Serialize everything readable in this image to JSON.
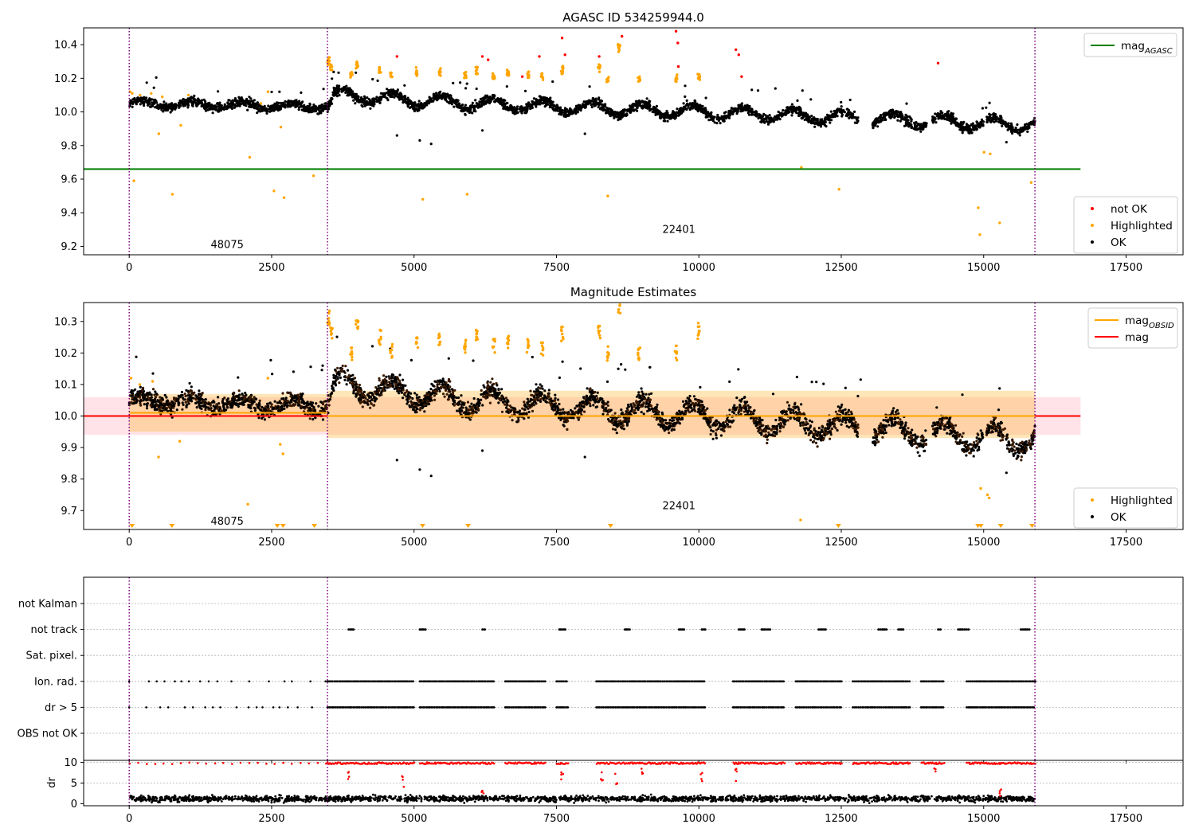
{
  "chart_data": [
    {
      "type": "scatter",
      "title": "AGASC ID 534259944.0",
      "xlim": [
        -800,
        18500
      ],
      "ylim": [
        9.15,
        10.5
      ],
      "x_ticks": [
        0,
        2500,
        5000,
        7500,
        10000,
        12500,
        15000,
        17500
      ],
      "y_ticks": [
        9.2,
        9.4,
        9.6,
        9.8,
        10.0,
        10.2,
        10.4
      ],
      "vlines": [
        0,
        3480,
        15900
      ],
      "obsid_labels": [
        {
          "x": 1720,
          "y": 9.21,
          "text": "48075"
        },
        {
          "x": 9650,
          "y": 9.3,
          "text": "22401"
        }
      ],
      "lines": [
        {
          "name": "mag",
          "subscript": "AGASC",
          "color": "#008000",
          "y": 9.66,
          "x": [
            -800,
            16700
          ]
        }
      ],
      "legend_top": [
        {
          "label": "mag",
          "subscript": "AGASC",
          "color": "#008000",
          "kind": "line"
        }
      ],
      "legend_bottom": [
        {
          "label": "not OK",
          "color": "#ff0000",
          "kind": "dot"
        },
        {
          "label": "Highlighted",
          "color": "#ffa500",
          "kind": "dot"
        },
        {
          "label": "OK",
          "color": "#000000",
          "kind": "dot"
        }
      ],
      "ok_trend": [
        [
          0,
          10.05
        ],
        [
          3480,
          10.03
        ],
        [
          3600,
          10.1
        ],
        [
          6000,
          10.05
        ],
        [
          10000,
          10.0
        ],
        [
          13000,
          9.96
        ],
        [
          15900,
          9.92
        ]
      ],
      "highlighted": [
        [
          30,
          10.12
        ],
        [
          60,
          10.11
        ],
        [
          90,
          9.59
        ],
        [
          200,
          10.1
        ],
        [
          400,
          10.11
        ],
        [
          500,
          9.87
        ],
        [
          600,
          10.09
        ],
        [
          760,
          9.51
        ],
        [
          900,
          9.92
        ],
        [
          1050,
          10.1
        ],
        [
          2100,
          9.73
        ],
        [
          2300,
          10.05
        ],
        [
          2450,
          10.12
        ],
        [
          2550,
          9.53
        ],
        [
          2650,
          9.91
        ],
        [
          2700,
          9.49
        ],
        [
          3250,
          9.62
        ],
        [
          3500,
          10.3
        ],
        [
          3550,
          10.27
        ],
        [
          3900,
          10.22
        ],
        [
          4000,
          10.28
        ],
        [
          4400,
          10.24
        ],
        [
          4600,
          10.21
        ],
        [
          5050,
          10.24
        ],
        [
          5150,
          9.48
        ],
        [
          5450,
          10.24
        ],
        [
          5900,
          10.22
        ],
        [
          5930,
          9.51
        ],
        [
          6100,
          10.25
        ],
        [
          6400,
          10.22
        ],
        [
          6650,
          10.23
        ],
        [
          7000,
          10.22
        ],
        [
          7250,
          10.21
        ],
        [
          7600,
          10.25
        ],
        [
          8250,
          10.26
        ],
        [
          8400,
          10.2
        ],
        [
          8420,
          9.5
        ],
        [
          8600,
          10.38
        ],
        [
          8950,
          10.2
        ],
        [
          9600,
          10.2
        ],
        [
          10000,
          10.2
        ],
        [
          11800,
          9.67
        ],
        [
          12450,
          9.54
        ],
        [
          14900,
          9.43
        ],
        [
          14950,
          9.27
        ],
        [
          15000,
          9.76
        ],
        [
          15100,
          9.75
        ],
        [
          15300,
          9.34
        ],
        [
          15850,
          9.58
        ]
      ],
      "not_ok": [
        [
          4700,
          10.33
        ],
        [
          6200,
          10.33
        ],
        [
          6300,
          10.31
        ],
        [
          6900,
          10.21
        ],
        [
          7200,
          10.33
        ],
        [
          7600,
          10.44
        ],
        [
          7650,
          10.34
        ],
        [
          8250,
          10.33
        ],
        [
          8650,
          10.45
        ],
        [
          9600,
          10.48
        ],
        [
          9630,
          10.41
        ],
        [
          9640,
          10.27
        ],
        [
          10650,
          10.37
        ],
        [
          10700,
          10.34
        ],
        [
          10750,
          10.21
        ],
        [
          14200,
          10.29
        ]
      ]
    },
    {
      "type": "scatter",
      "title": "Magnitude Estimates",
      "xlim": [
        -800,
        18500
      ],
      "ylim": [
        9.64,
        10.36
      ],
      "x_ticks": [
        0,
        2500,
        5000,
        7500,
        10000,
        12500,
        15000,
        17500
      ],
      "y_ticks": [
        9.7,
        9.8,
        9.9,
        10.0,
        10.1,
        10.2,
        10.3
      ],
      "vlines": [
        0,
        3480,
        15900
      ],
      "obsid_labels": [
        {
          "x": 1720,
          "y": 9.665,
          "text": "48075"
        },
        {
          "x": 9650,
          "y": 9.715,
          "text": "22401"
        }
      ],
      "lines": [
        {
          "name": "mag",
          "subscript": "OBSID",
          "color": "#ffa500",
          "segments": [
            [
              0,
              3480,
              10.01
            ],
            [
              3480,
              15900,
              10.0
            ]
          ]
        },
        {
          "name": "mag",
          "color": "#ff0000",
          "y": 10.0,
          "x": [
            -800,
            16700
          ]
        }
      ],
      "bands": [
        {
          "color": "#ffc0cb",
          "x": [
            -800,
            16700
          ],
          "y": [
            9.94,
            10.06
          ]
        },
        {
          "color": "#ffa500",
          "x": [
            0,
            3480
          ],
          "y": [
            9.95,
            10.07
          ]
        },
        {
          "color": "#ffa500",
          "x": [
            3480,
            15900
          ],
          "y": [
            9.93,
            10.08
          ]
        }
      ],
      "legend_top": [
        {
          "label": "mag",
          "subscript": "OBSID",
          "color": "#ffa500",
          "kind": "line"
        },
        {
          "label": "mag",
          "color": "#ff0000",
          "kind": "line"
        }
      ],
      "legend_bottom": [
        {
          "label": "Highlighted",
          "color": "#ffa500",
          "kind": "dot"
        },
        {
          "label": "OK",
          "color": "#000000",
          "kind": "dot"
        }
      ],
      "ok_trend": [
        [
          0,
          10.05
        ],
        [
          3480,
          10.03
        ],
        [
          3600,
          10.1
        ],
        [
          6000,
          10.05
        ],
        [
          10000,
          10.0
        ],
        [
          13000,
          9.96
        ],
        [
          15900,
          9.92
        ]
      ],
      "highlighted": [
        [
          30,
          10.12
        ],
        [
          200,
          10.1
        ],
        [
          400,
          10.11
        ],
        [
          500,
          9.87
        ],
        [
          900,
          9.92
        ],
        [
          2100,
          9.72
        ],
        [
          2450,
          10.12
        ],
        [
          2650,
          9.91
        ],
        [
          2700,
          9.88
        ],
        [
          3500,
          10.31
        ],
        [
          3550,
          10.27
        ],
        [
          3900,
          10.2
        ],
        [
          4000,
          10.28
        ],
        [
          4400,
          10.25
        ],
        [
          4600,
          10.21
        ],
        [
          5050,
          10.23
        ],
        [
          5450,
          10.25
        ],
        [
          5900,
          10.22
        ],
        [
          6100,
          10.26
        ],
        [
          6400,
          10.22
        ],
        [
          6650,
          10.23
        ],
        [
          7000,
          10.22
        ],
        [
          7250,
          10.21
        ],
        [
          7600,
          10.26
        ],
        [
          8250,
          10.27
        ],
        [
          8400,
          10.2
        ],
        [
          8600,
          10.35
        ],
        [
          8950,
          10.2
        ],
        [
          9600,
          10.2
        ],
        [
          10000,
          10.27
        ],
        [
          11800,
          9.67
        ],
        [
          14950,
          9.77
        ],
        [
          15050,
          9.75
        ],
        [
          15100,
          9.74
        ]
      ],
      "lower_limits": [
        50,
        750,
        2600,
        2700,
        3250,
        5150,
        5950,
        8450,
        12450,
        14900,
        14950,
        15300,
        15850
      ]
    },
    {
      "type": "flags",
      "xlim": [
        -800,
        18500
      ],
      "x_ticks": [
        0,
        2500,
        5000,
        7500,
        10000,
        12500,
        15000,
        17500
      ],
      "vlines": [
        0,
        3480,
        15900
      ],
      "rows": [
        "not Kalman",
        "not track",
        "Sat. pixel.",
        "Ion. rad.",
        "dr > 5",
        "OBS not OK"
      ],
      "flag_ranges": {
        "not track": [
          [
            3850,
            3950
          ],
          [
            5100,
            5200
          ],
          [
            6200,
            6250
          ],
          [
            7550,
            7650
          ],
          [
            8700,
            8800
          ],
          [
            9650,
            9750
          ],
          [
            10050,
            10120
          ],
          [
            10700,
            10800
          ],
          [
            11100,
            11250
          ],
          [
            12100,
            12250
          ],
          [
            13150,
            13300
          ],
          [
            13500,
            13600
          ],
          [
            14200,
            14250
          ],
          [
            14550,
            14750
          ],
          [
            15650,
            15800
          ]
        ],
        "Ion. rad.": [
          [
            0,
            3480,
            "sparse"
          ],
          [
            3480,
            5000
          ],
          [
            5100,
            6400
          ],
          [
            6600,
            7300
          ],
          [
            7500,
            7700
          ],
          [
            8200,
            10100
          ],
          [
            10600,
            11500
          ],
          [
            11700,
            12500
          ],
          [
            12700,
            13700
          ],
          [
            13900,
            14300
          ],
          [
            14700,
            15900
          ]
        ],
        "dr > 5": [
          [
            0,
            3480,
            "sparse"
          ],
          [
            3480,
            5000
          ],
          [
            5100,
            6400
          ],
          [
            6600,
            7300
          ],
          [
            7500,
            7700
          ],
          [
            8200,
            10100
          ],
          [
            10600,
            11500
          ],
          [
            11700,
            12500
          ],
          [
            12700,
            13700
          ],
          [
            13900,
            14300
          ],
          [
            14700,
            15900
          ]
        ]
      }
    },
    {
      "type": "scatter",
      "ylabel": "dr",
      "xlim": [
        -800,
        18500
      ],
      "ylim": [
        -0.5,
        10.5
      ],
      "x_ticks": [
        0,
        2500,
        5000,
        7500,
        10000,
        12500,
        15000,
        17500
      ],
      "x_tick_labels": [
        "0",
        "2500",
        "5000",
        "7500",
        "10000",
        "12500",
        "15000",
        "17500"
      ],
      "y_ticks": [
        0,
        5,
        10
      ],
      "y_tick_labels": [
        "0",
        "5",
        "10"
      ],
      "vlines": [
        0,
        3480,
        15900
      ],
      "ok_level": 1.2,
      "not_ok_level": 10
    }
  ]
}
